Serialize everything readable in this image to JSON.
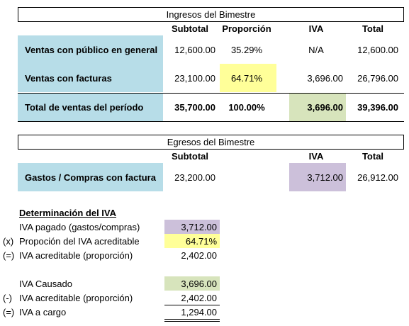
{
  "ingresos": {
    "title": "Ingresos del Bimestre",
    "headers": [
      "Subtotal",
      "Proporción",
      "IVA",
      "Total"
    ],
    "rows": [
      {
        "label": "Ventas con público en general",
        "cells": [
          "12,600.00",
          "35.29%",
          "N/A",
          "12,600.00"
        ]
      },
      {
        "label": "Ventas con facturas",
        "cells": [
          "23,100.00",
          "64.71%",
          "3,696.00",
          "26,796.00"
        ]
      },
      {
        "label": "Total de ventas del período",
        "cells": [
          "35,700.00",
          "100.00%",
          "3,696.00",
          "39,396.00"
        ]
      }
    ]
  },
  "egresos": {
    "title": "Egresos del Bimestre",
    "headers": [
      "Subtotal",
      "IVA",
      "Total"
    ],
    "rows": [
      {
        "label": "Gastos / Compras con factura",
        "cells": [
          "23,200.00",
          "3,712.00",
          "26,912.00"
        ]
      }
    ]
  },
  "determinacion": {
    "title": "Determinación del IVA",
    "rows": [
      {
        "label": "IVA pagado (gastos/compras)",
        "value": "3,712.00"
      },
      {
        "prefix": "(x)",
        "label": "Propoción del IVA acreditable",
        "value": "64.71%"
      },
      {
        "prefix": "(=)",
        "label": "IVA acreditable (proporción)",
        "value": "2,402.00"
      },
      {
        "label": "IVA Causado",
        "value": "3,696.00"
      },
      {
        "prefix": "(-)",
        "label": "IVA acreditable (proporción)",
        "value": "2,402.00"
      },
      {
        "prefix": "(=)",
        "label": "IVA a cargo",
        "value": "1,294.00"
      }
    ]
  }
}
